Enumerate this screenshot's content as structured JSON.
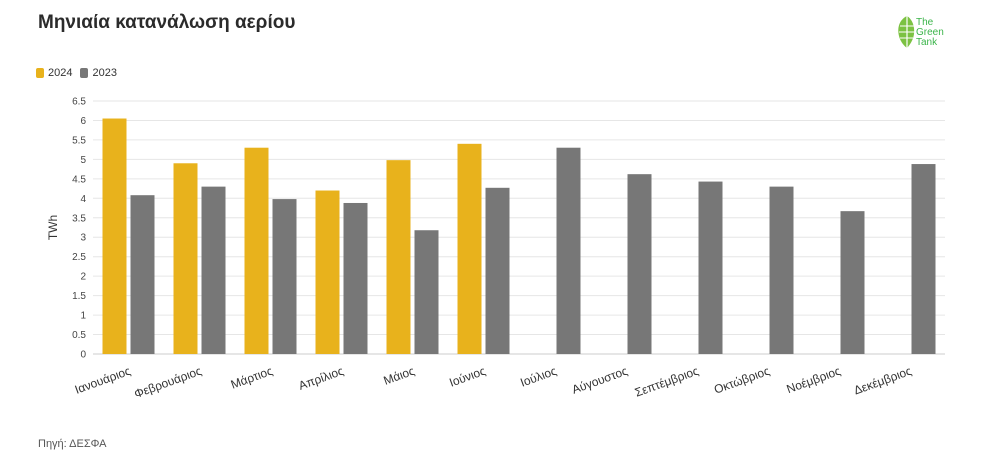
{
  "title": "Μηνιαία κατανάλωση αερίου",
  "logo": {
    "text_lines": [
      "The",
      "Green",
      "Tank"
    ],
    "color": "#3bb44a"
  },
  "source": "Πηγή: ΔΕΣΦΑ",
  "colors": {
    "y2024": "#e8b21c",
    "y2023": "#777777",
    "grid": "#e6e6e6",
    "axis": "#cccccc"
  },
  "chart_data": {
    "type": "bar",
    "title": "Μηνιαία κατανάλωση αερίου",
    "ylabel": "TWh",
    "xlabel": "",
    "ylim": [
      0,
      6.5
    ],
    "yticks": [
      "0",
      "0.5",
      "1",
      "1.5",
      "2",
      "2.5",
      "3",
      "3.5",
      "4",
      "4.5",
      "5",
      "5.5",
      "6",
      "6.5"
    ],
    "grid": true,
    "legend_position": "top-left",
    "categories": [
      "Ιανουάριος",
      "Φεβρουάριος",
      "Μάρτιος",
      "Απρίλιος",
      "Μάιος",
      "Ιούνιος",
      "Ιούλιος",
      "Αύγουστος",
      "Σεπτέμβριος",
      "Οκτώβριος",
      "Νοέμβριος",
      "Δεκέμβριος"
    ],
    "series": [
      {
        "name": "2024",
        "color": "#e8b21c",
        "values": [
          6.05,
          4.9,
          5.3,
          4.2,
          4.98,
          5.4,
          null,
          null,
          null,
          null,
          null,
          null
        ]
      },
      {
        "name": "2023",
        "color": "#777777",
        "values": [
          4.08,
          4.3,
          3.98,
          3.88,
          3.18,
          4.27,
          5.3,
          4.62,
          4.43,
          4.3,
          3.67,
          4.88
        ]
      }
    ]
  }
}
